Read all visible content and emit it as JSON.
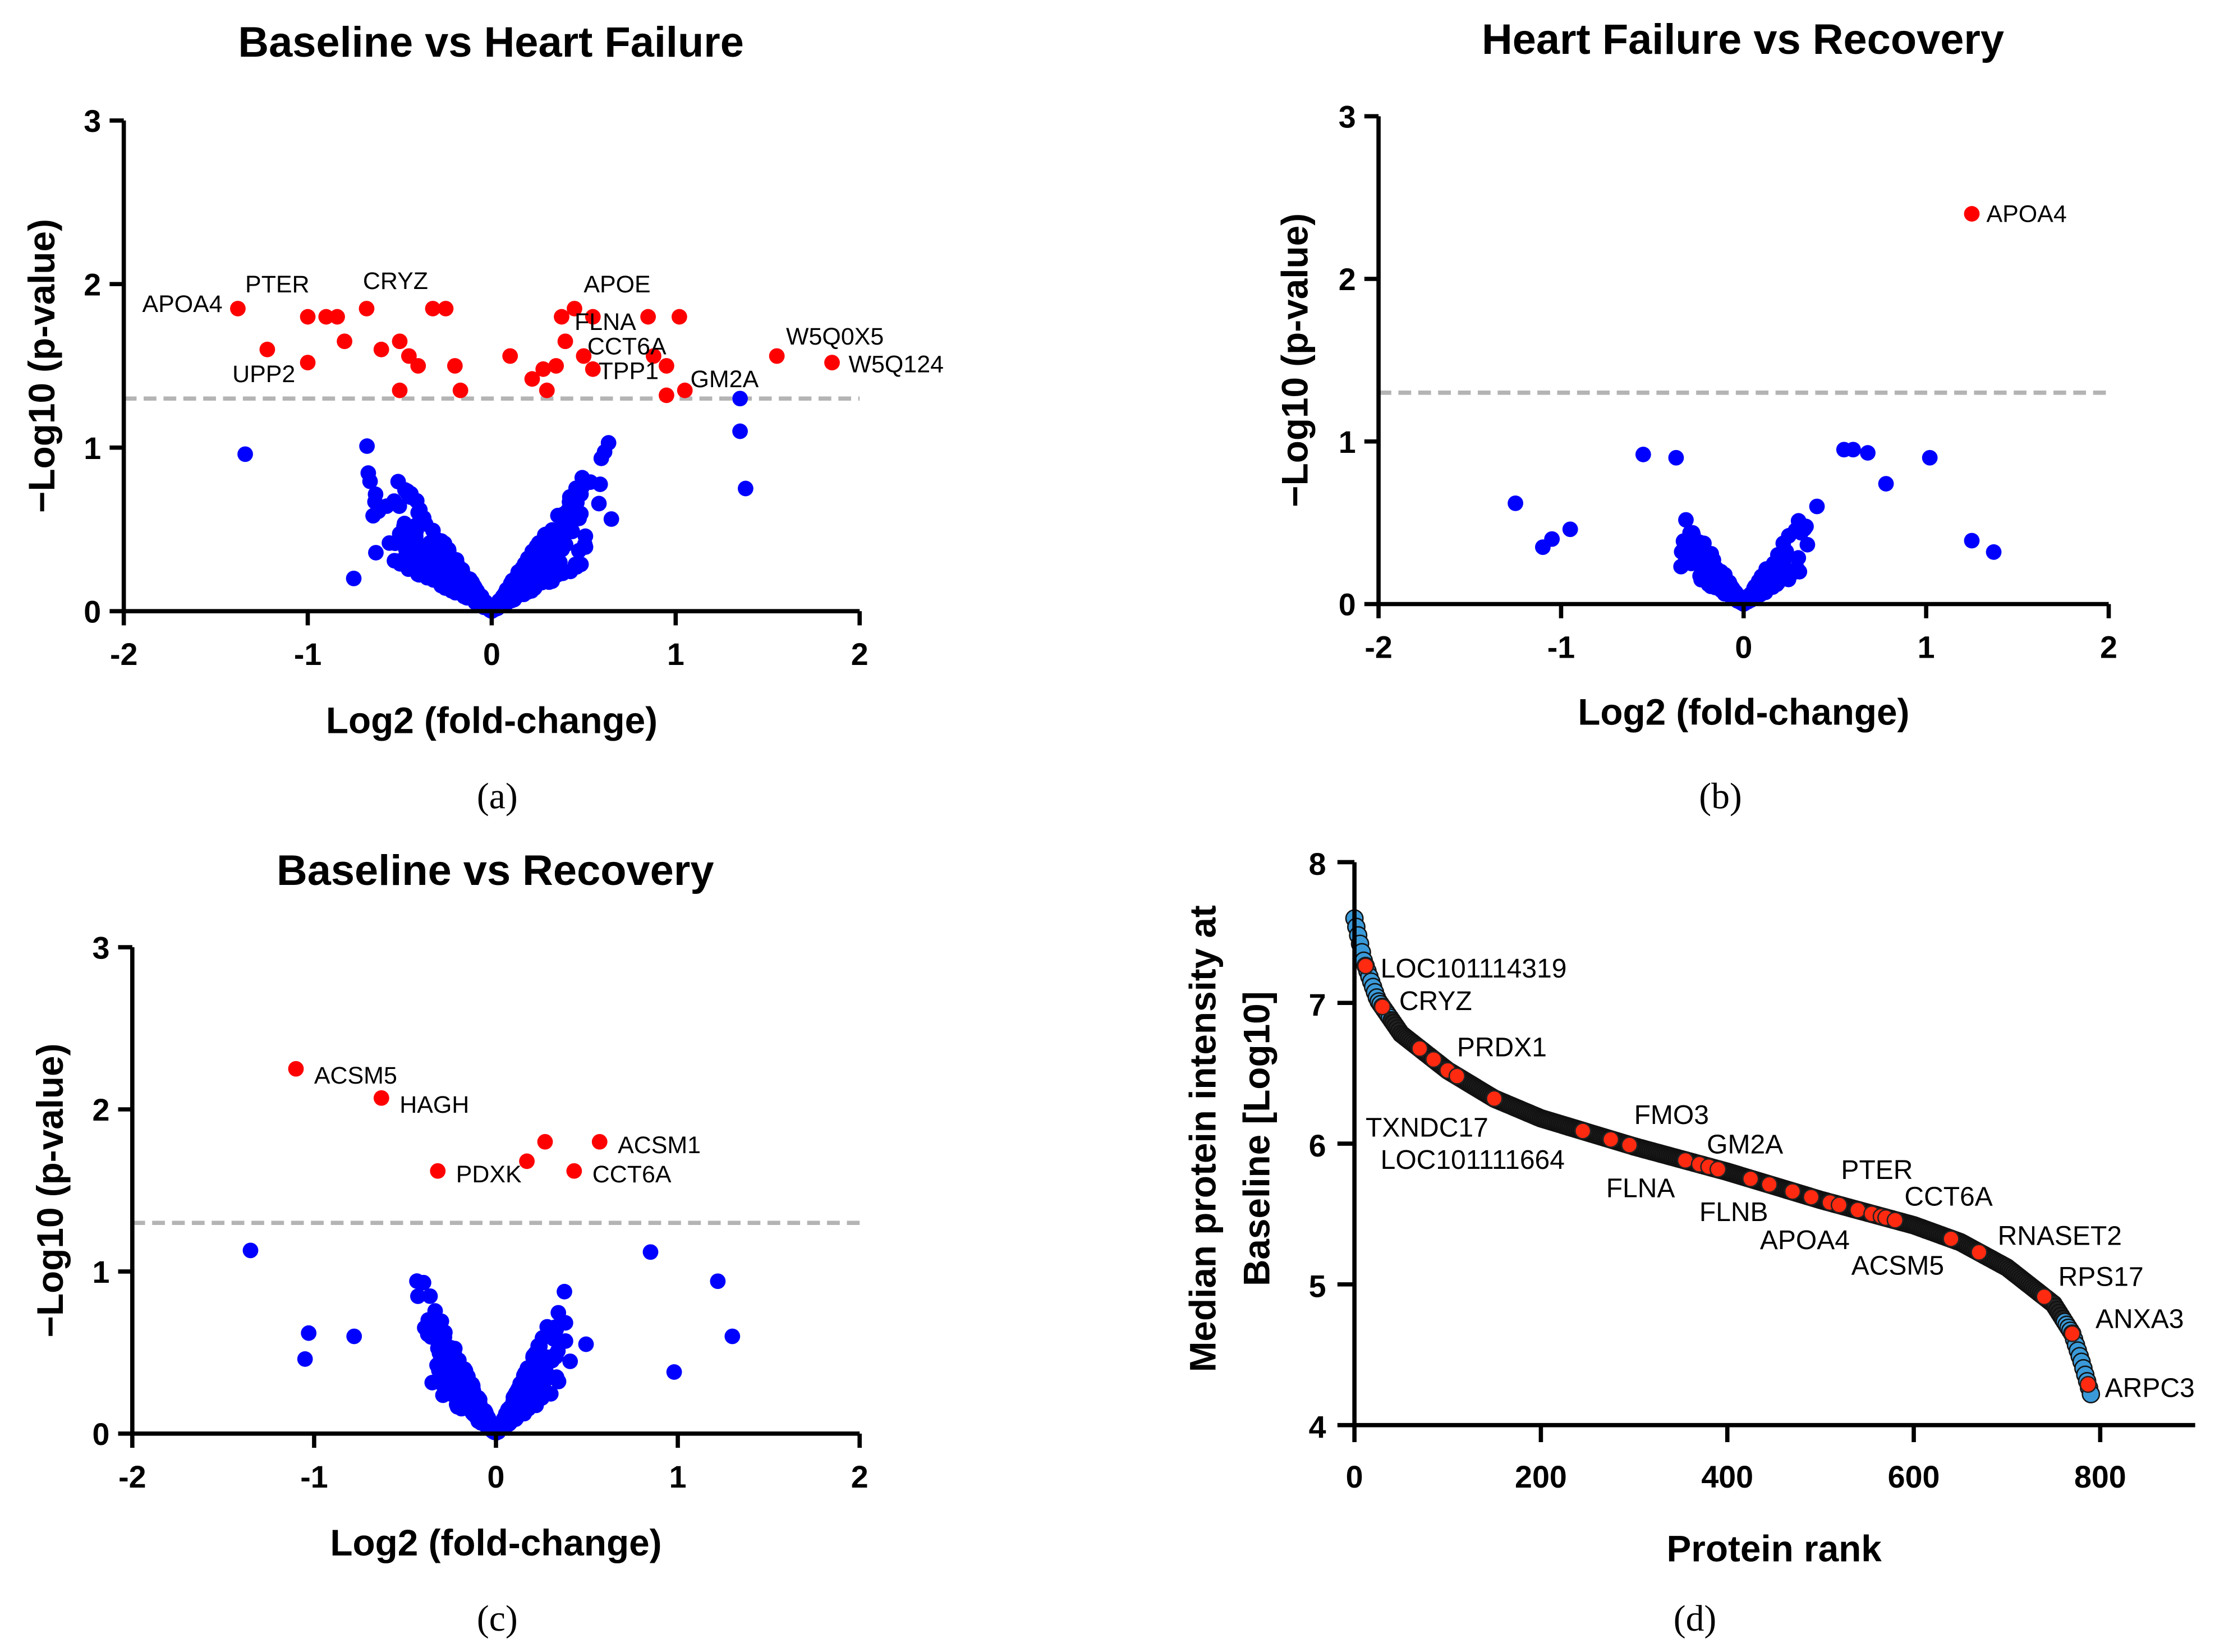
{
  "chart_data": [
    {
      "id": "a",
      "type": "scatter",
      "panel_label": "(a)",
      "title": "Baseline vs Heart Failure",
      "xlabel": "Log2 (fold-change)",
      "ylabel": "−Log10 (p-value)",
      "xlim": [
        -2,
        2
      ],
      "ylim": [
        0,
        3
      ],
      "xticks": [
        "-2",
        "-1",
        "0",
        "1",
        "2"
      ],
      "yticks": [
        "0",
        "1",
        "2",
        "3"
      ],
      "threshold": 1.3,
      "nonsignificant_color": "#0000ff",
      "significant_color": "#ff0000",
      "nonsignificant_count": 520,
      "nonsignificant_max_abs_x": 1.4,
      "nonsignificant_outliers": [
        [
          -1.34,
          0.96
        ],
        [
          1.35,
          1.1
        ],
        [
          1.38,
          0.75
        ],
        [
          1.35,
          1.3
        ],
        [
          -0.75,
          0.2
        ]
      ],
      "significant": [
        [
          -1.38,
          1.85
        ],
        [
          -1.22,
          1.6
        ],
        [
          -1.0,
          1.52
        ],
        [
          -1.0,
          1.8
        ],
        [
          -0.9,
          1.8
        ],
        [
          -0.84,
          1.8
        ],
        [
          -0.8,
          1.65
        ],
        [
          -0.68,
          1.85
        ],
        [
          -0.6,
          1.6
        ],
        [
          -0.5,
          1.65
        ],
        [
          -0.45,
          1.56
        ],
        [
          -0.4,
          1.5
        ],
        [
          -0.5,
          1.35
        ],
        [
          -0.32,
          1.85
        ],
        [
          -0.25,
          1.85
        ],
        [
          -0.2,
          1.5
        ],
        [
          -0.17,
          1.35
        ],
        [
          0.1,
          1.56
        ],
        [
          0.22,
          1.42
        ],
        [
          0.28,
          1.48
        ],
        [
          0.3,
          1.35
        ],
        [
          0.35,
          1.5
        ],
        [
          0.38,
          1.8
        ],
        [
          0.4,
          1.65
        ],
        [
          0.45,
          1.85
        ],
        [
          0.5,
          1.56
        ],
        [
          0.55,
          1.8
        ],
        [
          0.55,
          1.48
        ],
        [
          0.85,
          1.8
        ],
        [
          0.88,
          1.56
        ],
        [
          0.95,
          1.5
        ],
        [
          0.95,
          1.32
        ],
        [
          1.02,
          1.8
        ],
        [
          1.05,
          1.35
        ],
        [
          1.55,
          1.56
        ],
        [
          1.85,
          1.52
        ]
      ],
      "labels": [
        {
          "text": "APOA4",
          "x": -1.9,
          "y": 1.83
        },
        {
          "text": "PTER",
          "x": -1.34,
          "y": 1.95
        },
        {
          "text": "CRYZ",
          "x": -0.7,
          "y": 1.97
        },
        {
          "text": "UPP2",
          "x": -1.41,
          "y": 1.4
        },
        {
          "text": "APOE",
          "x": 0.5,
          "y": 1.95
        },
        {
          "text": "FLNA",
          "x": 0.45,
          "y": 1.72
        },
        {
          "text": "CCT6A",
          "x": 0.52,
          "y": 1.57
        },
        {
          "text": "TPP1",
          "x": 0.58,
          "y": 1.42
        },
        {
          "text": "GM2A",
          "x": 1.08,
          "y": 1.37
        },
        {
          "text": "W5Q0X5",
          "x": 1.6,
          "y": 1.63
        },
        {
          "text": "W5Q124",
          "x": 1.94,
          "y": 1.46
        }
      ]
    },
    {
      "id": "b",
      "type": "scatter",
      "panel_label": "(b)",
      "title": "Heart Failure vs Recovery",
      "xlabel": "Log2 (fold-change)",
      "ylabel": "−Log10 (p-value)",
      "xlim": [
        -2,
        2
      ],
      "ylim": [
        0,
        3
      ],
      "xticks": [
        "-2",
        "-1",
        "0",
        "1",
        "2"
      ],
      "yticks": [
        "0",
        "1",
        "2",
        "3"
      ],
      "threshold": 1.3,
      "nonsignificant_color": "#0000ff",
      "significant_color": "#ff0000",
      "nonsignificant_count": 300,
      "nonsignificant_max_abs_x": 0.8,
      "nonsignificant_outliers": [
        [
          -1.25,
          0.62
        ],
        [
          -1.1,
          0.35
        ],
        [
          -1.05,
          0.4
        ],
        [
          -0.95,
          0.46
        ],
        [
          1.02,
          0.9
        ],
        [
          1.25,
          0.39
        ],
        [
          1.37,
          0.32
        ],
        [
          0.78,
          0.74
        ],
        [
          0.55,
          0.95
        ],
        [
          0.6,
          0.95
        ],
        [
          0.68,
          0.93
        ],
        [
          -0.55,
          0.92
        ],
        [
          -0.37,
          0.9
        ]
      ],
      "significant": [
        [
          1.25,
          2.4
        ]
      ],
      "labels": [
        {
          "text": "APOA4",
          "x": 1.33,
          "y": 2.35
        }
      ]
    },
    {
      "id": "c",
      "type": "scatter",
      "panel_label": "(c)",
      "title": "Baseline vs Recovery",
      "xlabel": "Log2 (fold-change)",
      "ylabel": "−Log10 (p-value)",
      "xlim": [
        -2,
        2
      ],
      "ylim": [
        0,
        3
      ],
      "xticks": [
        "-2",
        "-1",
        "0",
        "1",
        "2"
      ],
      "yticks": [
        "0",
        "1",
        "2",
        "3"
      ],
      "threshold": 1.3,
      "nonsignificant_color": "#0000ff",
      "significant_color": "#ff0000",
      "nonsignificant_count": 420,
      "nonsignificant_max_abs_x": 1.0,
      "nonsignificant_outliers": [
        [
          -1.35,
          1.13
        ],
        [
          -1.03,
          0.62
        ],
        [
          -1.05,
          0.46
        ],
        [
          -0.78,
          0.6
        ],
        [
          1.22,
          0.94
        ],
        [
          1.3,
          0.6
        ],
        [
          0.85,
          1.12
        ],
        [
          0.98,
          0.38
        ]
      ],
      "significant": [
        [
          -1.1,
          2.25
        ],
        [
          -0.63,
          2.07
        ],
        [
          -0.32,
          1.62
        ],
        [
          0.17,
          1.68
        ],
        [
          0.27,
          1.8
        ],
        [
          0.57,
          1.8
        ],
        [
          0.43,
          1.62
        ]
      ],
      "labels": [
        {
          "text": "ACSM5",
          "x": -1.0,
          "y": 2.16
        },
        {
          "text": "HAGH",
          "x": -0.53,
          "y": 1.98
        },
        {
          "text": "PDXK",
          "x": -0.22,
          "y": 1.55
        },
        {
          "text": "ACSM1",
          "x": 0.67,
          "y": 1.73
        },
        {
          "text": "CCT6A",
          "x": 0.53,
          "y": 1.55
        }
      ]
    },
    {
      "id": "d",
      "type": "scatter",
      "panel_label": "(d)",
      "xlabel": "Protein rank",
      "ylabel": [
        "Median protein intensity at",
        "Baseline [Log10]"
      ],
      "xlim": [
        0,
        900
      ],
      "ylim": [
        4,
        8
      ],
      "xticks": [
        "0",
        "200",
        "400",
        "600",
        "800"
      ],
      "yticks": [
        "4",
        "5",
        "6",
        "7",
        "8"
      ],
      "curve_color": "#222222",
      "edge_color": "#3a9ad9",
      "highlight_color": "#ff2a10",
      "n_proteins": 790,
      "curve": [
        [
          0,
          7.6
        ],
        [
          10,
          7.3
        ],
        [
          25,
          7.02
        ],
        [
          50,
          6.78
        ],
        [
          100,
          6.52
        ],
        [
          150,
          6.32
        ],
        [
          200,
          6.18
        ],
        [
          300,
          5.98
        ],
        [
          400,
          5.8
        ],
        [
          500,
          5.6
        ],
        [
          600,
          5.42
        ],
        [
          650,
          5.3
        ],
        [
          700,
          5.12
        ],
        [
          750,
          4.86
        ],
        [
          770,
          4.65
        ],
        [
          780,
          4.45
        ],
        [
          790,
          4.22
        ]
      ],
      "highlighted_ranks": [
        12,
        30,
        70,
        85,
        100,
        110,
        150,
        245,
        275,
        295,
        355,
        370,
        380,
        390,
        425,
        445,
        470,
        490,
        510,
        520,
        540,
        555,
        565,
        570,
        580,
        640,
        670,
        740,
        770,
        787
      ],
      "labels": [
        {
          "text": "LOC101114319",
          "x": 28,
          "y": 7.18
        },
        {
          "text": "CRYZ",
          "x": 48,
          "y": 6.95
        },
        {
          "text": "PRDX1",
          "x": 110,
          "y": 6.62
        },
        {
          "text": "TXNDC17",
          "x": 12,
          "y": 6.05
        },
        {
          "text": "LOC101111664",
          "x": 28,
          "y": 5.82
        },
        {
          "text": "FMO3",
          "x": 300,
          "y": 6.14
        },
        {
          "text": "GM2A",
          "x": 378,
          "y": 5.93
        },
        {
          "text": "FLNA",
          "x": 270,
          "y": 5.62
        },
        {
          "text": "PTER",
          "x": 522,
          "y": 5.75
        },
        {
          "text": "CCT6A",
          "x": 590,
          "y": 5.56
        },
        {
          "text": "FLNB",
          "x": 370,
          "y": 5.45
        },
        {
          "text": "APOA4",
          "x": 435,
          "y": 5.25
        },
        {
          "text": "RNASET2",
          "x": 690,
          "y": 5.28
        },
        {
          "text": "ACSM5",
          "x": 533,
          "y": 5.07
        },
        {
          "text": "RPS17",
          "x": 755,
          "y": 4.99
        },
        {
          "text": "ANXA3",
          "x": 795,
          "y": 4.69
        },
        {
          "text": "ARPC3",
          "x": 805,
          "y": 4.2
        }
      ]
    }
  ]
}
